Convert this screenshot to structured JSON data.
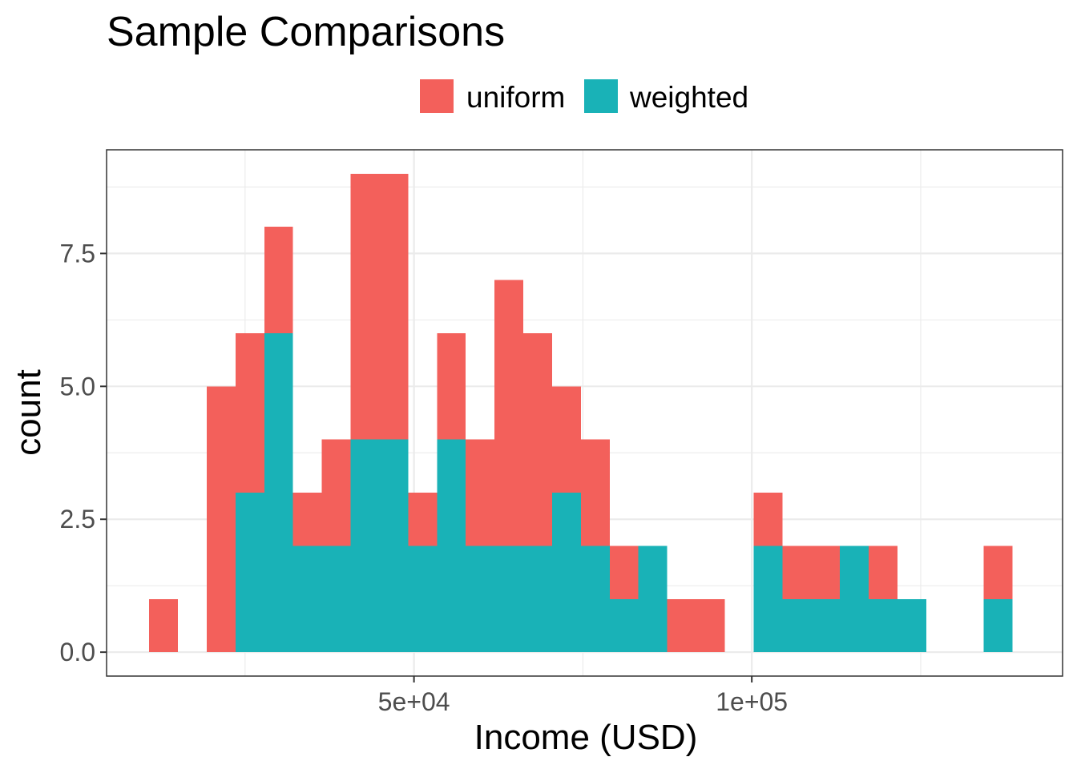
{
  "chart_data": {
    "type": "bar",
    "stacked": true,
    "title": "Sample Comparisons",
    "xlabel": "Income (USD)",
    "ylabel": "count",
    "x_ticks": [
      {
        "value": 50000,
        "label": "5e+04"
      },
      {
        "value": 100000,
        "label": "1e+05"
      }
    ],
    "y_ticks": [
      {
        "value": 0.0,
        "label": "0.0"
      },
      {
        "value": 2.5,
        "label": "2.5"
      },
      {
        "value": 5.0,
        "label": "5.0"
      },
      {
        "value": 7.5,
        "label": "7.5"
      }
    ],
    "xlim": [
      4500,
      146000
    ],
    "ylim": [
      -0.45,
      9.45
    ],
    "grid": true,
    "legend_position": "top",
    "bin_width": 4260,
    "bin_starts": [
      10800,
      15060,
      19320,
      23580,
      27840,
      32100,
      36360,
      40620,
      44880,
      49140,
      53400,
      57660,
      61920,
      66180,
      70440,
      74700,
      78960,
      83220,
      87480,
      91740,
      96000,
      100260,
      104520,
      108780,
      113040,
      117300,
      121560,
      125820,
      130080,
      134340
    ],
    "series": [
      {
        "name": "weighted",
        "color": "#19b2b7",
        "values": [
          0,
          0,
          0,
          3,
          6,
          2,
          2,
          4,
          4,
          2,
          4,
          2,
          2,
          2,
          3,
          2,
          1,
          2,
          0,
          0,
          0,
          2,
          1,
          1,
          2,
          1,
          1,
          0,
          0,
          1
        ]
      },
      {
        "name": "uniform",
        "color": "#f3605b",
        "values": [
          1,
          0,
          5,
          3,
          2,
          1,
          2,
          5,
          5,
          1,
          2,
          2,
          5,
          4,
          2,
          2,
          1,
          0,
          1,
          1,
          0,
          1,
          1,
          1,
          0,
          1,
          0,
          0,
          0,
          1
        ]
      }
    ]
  }
}
